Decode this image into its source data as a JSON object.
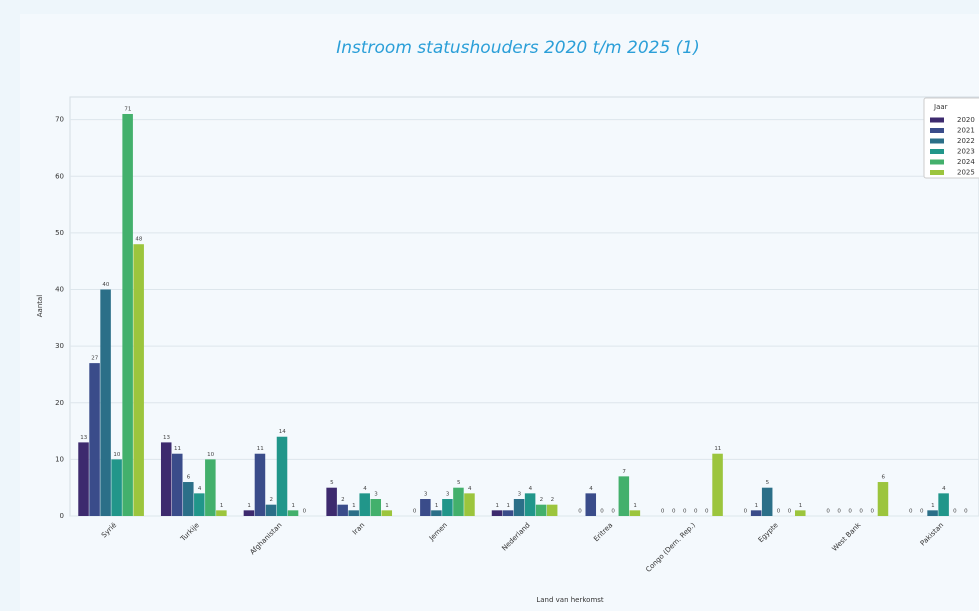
{
  "chart_data": {
    "type": "bar",
    "title": "Instroom statushouders 2020 t/m 2025 (1)",
    "x_label": "Land van herkomst",
    "y_label": "Aantal",
    "categories": [
      "Syrië",
      "Turkije",
      "Afghanistan",
      "Iran",
      "Jemen",
      "Nederland",
      "Eritrea",
      "Congo (Dem. Rep.)",
      "Egypte",
      "West Bank",
      "Pakistan"
    ],
    "series": [
      {
        "name": "2020",
        "color": "#3d2a6e",
        "values": [
          13,
          13,
          1,
          5,
          0,
          1,
          0,
          0,
          0,
          0,
          0
        ]
      },
      {
        "name": "2021",
        "color": "#3a4c8a",
        "values": [
          27,
          11,
          11,
          2,
          3,
          1,
          4,
          0,
          1,
          0,
          0
        ]
      },
      {
        "name": "2022",
        "color": "#2b6f88",
        "values": [
          40,
          6,
          2,
          1,
          1,
          3,
          0,
          0,
          5,
          0,
          1
        ]
      },
      {
        "name": "2023",
        "color": "#21968a",
        "values": [
          10,
          4,
          14,
          4,
          3,
          4,
          0,
          0,
          0,
          0,
          4
        ]
      },
      {
        "name": "2024",
        "color": "#43b06c",
        "values": [
          71,
          10,
          1,
          3,
          5,
          2,
          7,
          0,
          0,
          0,
          0
        ]
      },
      {
        "name": "2025",
        "color": "#9cc53d",
        "values": [
          48,
          1,
          0,
          1,
          4,
          2,
          1,
          11,
          1,
          6,
          0
        ]
      }
    ],
    "legend_title": "Jaar",
    "legend": "upper right",
    "ylim": [
      0,
      74
    ],
    "yticks": [
      0,
      10,
      20,
      30,
      40,
      50,
      60,
      70
    ],
    "grid": true
  }
}
